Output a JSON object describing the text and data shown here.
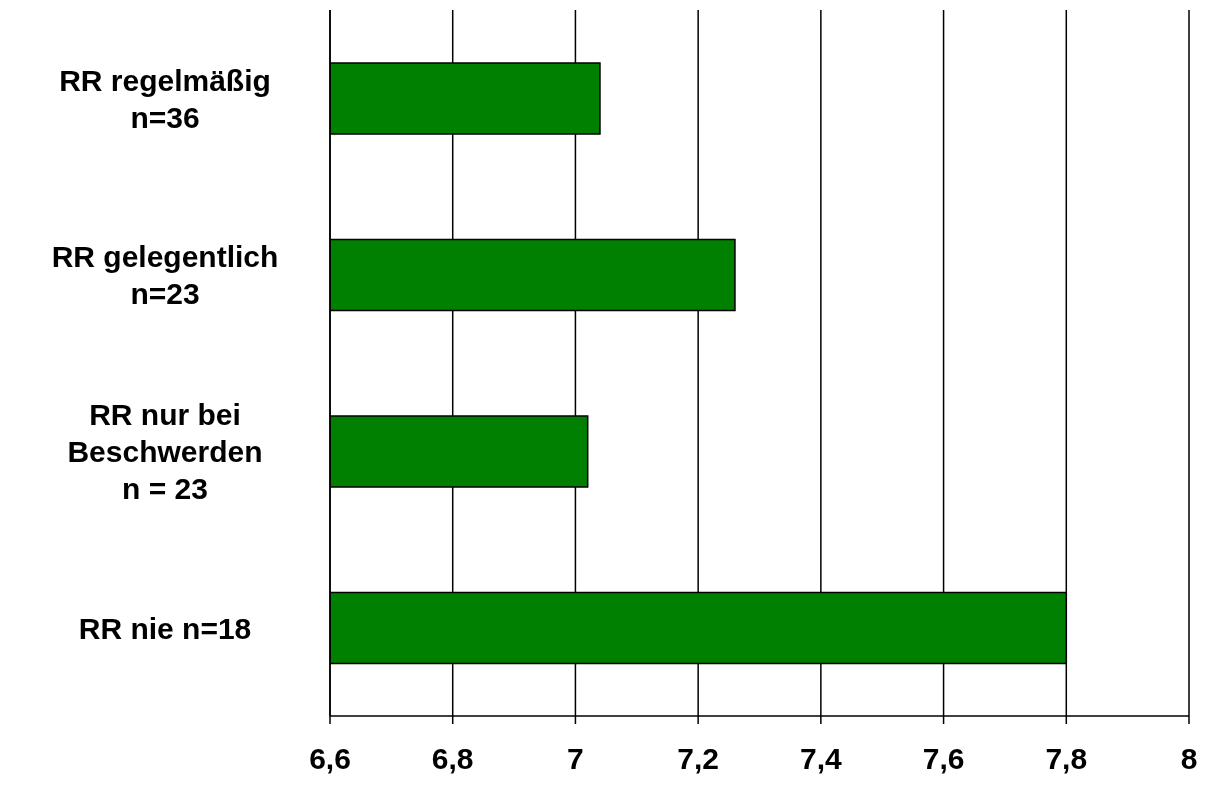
{
  "chart_data": {
    "type": "bar",
    "orientation": "horizontal",
    "categories": [
      "RR regelmäßig\nn=36",
      "RR gelegentlich\nn=23",
      "RR nur bei\nBeschwerden\nn = 23",
      "RR nie n=18"
    ],
    "values": [
      7.04,
      7.26,
      7.02,
      7.8
    ],
    "color": "#008000",
    "xlim": [
      6.6,
      8
    ],
    "xticks": [
      {
        "value": 6.6,
        "label": "6,6"
      },
      {
        "value": 6.8,
        "label": "6,8"
      },
      7,
      {
        "value": 7.2,
        "label": "7,2"
      },
      {
        "value": 7.4,
        "label": "7,4"
      },
      {
        "value": 7.6,
        "label": "7,6"
      },
      {
        "value": 7.8,
        "label": "7,8"
      },
      8
    ],
    "grid": "x"
  }
}
